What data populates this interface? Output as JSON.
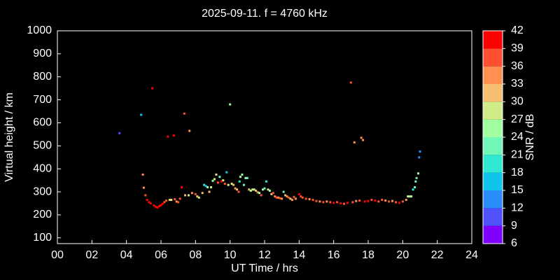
{
  "chart_data": {
    "type": "scatter",
    "title": "2025-09-11. f = 4760 kHz",
    "xlabel": "UT Time / hrs",
    "ylabel": "Virtual height / km",
    "colorbar_label": "SNR / dB",
    "xlim": [
      0,
      24
    ],
    "xticks": [
      {
        "value": 0,
        "label": "00"
      },
      {
        "value": 2,
        "label": "02"
      },
      {
        "value": 4,
        "label": "04"
      },
      {
        "value": 6,
        "label": "06"
      },
      {
        "value": 8,
        "label": "08"
      },
      10,
      12,
      14,
      16,
      18,
      20,
      22,
      24
    ],
    "ylim": [
      75,
      1000
    ],
    "yticks": [
      100,
      200,
      300,
      400,
      500,
      600,
      700,
      800,
      900,
      1000
    ],
    "clim": [
      6,
      42
    ],
    "cticks": [
      6,
      9,
      12,
      15,
      18,
      21,
      24,
      27,
      30,
      33,
      36,
      39,
      42
    ],
    "colormap": [
      "#7f00ff",
      "#5050ff",
      "#2a8cff",
      "#10c4ec",
      "#30e8d4",
      "#70f8b8",
      "#a0ffa0",
      "#d0ec88",
      "#f4c070",
      "#ff9050",
      "#ff5030",
      "#ff0000"
    ],
    "grid": false,
    "x": [
      3.6,
      4.85,
      4.95,
      5.0,
      5.1,
      5.2,
      5.3,
      5.4,
      5.5,
      5.6,
      5.7,
      5.8,
      5.9,
      6.0,
      6.1,
      6.2,
      6.3,
      6.4,
      6.5,
      6.6,
      6.75,
      6.8,
      6.9,
      7.0,
      7.1,
      7.2,
      7.35,
      7.4,
      7.6,
      7.65,
      7.8,
      8.0,
      8.1,
      8.2,
      8.4,
      8.5,
      8.6,
      8.7,
      8.8,
      8.9,
      9.0,
      9.1,
      9.2,
      9.3,
      9.4,
      9.5,
      9.6,
      9.7,
      9.8,
      9.9,
      10.0,
      10.1,
      10.2,
      10.3,
      10.4,
      10.5,
      10.55,
      10.6,
      10.7,
      10.8,
      10.9,
      11.0,
      11.1,
      11.2,
      11.3,
      11.4,
      11.5,
      11.6,
      11.7,
      11.8,
      11.9,
      12.0,
      12.1,
      12.2,
      12.3,
      12.4,
      12.5,
      12.6,
      12.7,
      12.8,
      12.9,
      13.0,
      13.1,
      13.2,
      13.3,
      13.4,
      13.5,
      13.6,
      13.7,
      13.8,
      14.0,
      14.1,
      14.2,
      14.4,
      14.6,
      14.8,
      15.0,
      15.2,
      15.4,
      15.6,
      15.8,
      16.0,
      16.2,
      16.4,
      16.6,
      16.8,
      17.0,
      17.1,
      17.2,
      17.3,
      17.5,
      17.6,
      17.7,
      17.8,
      18.0,
      18.2,
      18.4,
      18.6,
      18.8,
      19.0,
      19.2,
      19.4,
      19.6,
      19.8,
      20.0,
      20.2,
      20.3,
      20.4,
      20.5,
      20.6,
      20.7,
      20.75,
      20.8,
      20.9,
      20.95,
      21.0
    ],
    "y": [
      555,
      635,
      375,
      318,
      285,
      265,
      255,
      250,
      750,
      240,
      235,
      232,
      238,
      242,
      248,
      255,
      262,
      540,
      265,
      265,
      545,
      268,
      258,
      255,
      270,
      320,
      640,
      285,
      285,
      565,
      295,
      290,
      280,
      275,
      295,
      330,
      325,
      320,
      300,
      320,
      348,
      355,
      375,
      340,
      365,
      345,
      350,
      335,
      385,
      330,
      680,
      335,
      330,
      315,
      310,
      300,
      345,
      365,
      375,
      330,
      360,
      360,
      310,
      305,
      310,
      310,
      305,
      298,
      295,
      285,
      310,
      315,
      345,
      310,
      305,
      290,
      295,
      280,
      275,
      275,
      272,
      270,
      300,
      285,
      280,
      275,
      270,
      265,
      278,
      270,
      290,
      280,
      275,
      270,
      268,
      265,
      260,
      258,
      255,
      258,
      255,
      252,
      255,
      250,
      248,
      252,
      775,
      255,
      515,
      260,
      262,
      535,
      525,
      258,
      260,
      265,
      262,
      258,
      265,
      262,
      258,
      260,
      255,
      252,
      258,
      265,
      280,
      280,
      280,
      310,
      320,
      345,
      360,
      380,
      450,
      475
    ],
    "snr": [
      9,
      15,
      33,
      33,
      36,
      39,
      39,
      39,
      39,
      39,
      39,
      39,
      39,
      39,
      39,
      36,
      36,
      39,
      30,
      27,
      39,
      36,
      33,
      36,
      36,
      39,
      36,
      30,
      27,
      33,
      33,
      36,
      30,
      27,
      30,
      18,
      15,
      24,
      30,
      27,
      24,
      27,
      27,
      36,
      21,
      39,
      27,
      36,
      15,
      27,
      24,
      27,
      30,
      33,
      30,
      36,
      18,
      24,
      24,
      21,
      24,
      21,
      30,
      27,
      24,
      27,
      30,
      33,
      24,
      36,
      24,
      21,
      18,
      27,
      24,
      30,
      36,
      33,
      36,
      33,
      36,
      33,
      21,
      30,
      33,
      36,
      30,
      33,
      36,
      33,
      39,
      36,
      36,
      36,
      33,
      36,
      36,
      33,
      36,
      33,
      36,
      39,
      36,
      39,
      36,
      39,
      36,
      36,
      33,
      33,
      36,
      33,
      33,
      39,
      39,
      36,
      39,
      36,
      36,
      33,
      36,
      33,
      36,
      39,
      36,
      33,
      27,
      24,
      27,
      18,
      21,
      21,
      21,
      24,
      12,
      12
    ]
  }
}
